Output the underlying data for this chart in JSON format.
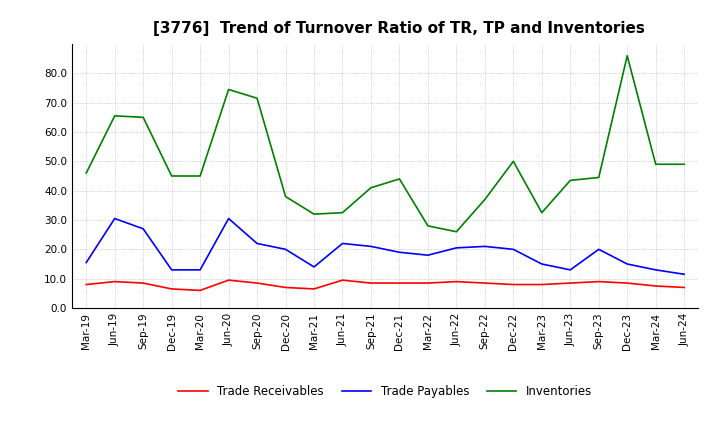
{
  "title": "[3776]  Trend of Turnover Ratio of TR, TP and Inventories",
  "x_labels": [
    "Mar-19",
    "Jun-19",
    "Sep-19",
    "Dec-19",
    "Mar-20",
    "Jun-20",
    "Sep-20",
    "Dec-20",
    "Mar-21",
    "Jun-21",
    "Sep-21",
    "Dec-21",
    "Mar-22",
    "Jun-22",
    "Sep-22",
    "Dec-22",
    "Mar-23",
    "Jun-23",
    "Sep-23",
    "Dec-23",
    "Mar-24",
    "Jun-24"
  ],
  "trade_receivables": [
    8.0,
    9.0,
    8.5,
    6.5,
    6.0,
    9.5,
    8.5,
    7.0,
    6.5,
    9.5,
    8.5,
    8.5,
    8.5,
    9.0,
    8.5,
    8.0,
    8.0,
    8.5,
    9.0,
    8.5,
    7.5,
    7.0
  ],
  "trade_payables": [
    15.5,
    30.5,
    27.0,
    13.0,
    13.0,
    30.5,
    22.0,
    20.0,
    14.0,
    22.0,
    21.0,
    19.0,
    18.0,
    20.5,
    21.0,
    20.0,
    15.0,
    13.0,
    20.0,
    15.0,
    13.0,
    11.5
  ],
  "inventories": [
    46.0,
    65.5,
    65.0,
    45.0,
    45.0,
    74.5,
    71.5,
    38.0,
    32.0,
    32.5,
    41.0,
    44.0,
    28.0,
    26.0,
    37.0,
    50.0,
    32.5,
    43.5,
    44.5,
    86.0,
    49.0,
    49.0
  ],
  "color_tr": "#ff0000",
  "color_tp": "#0000ff",
  "color_inv": "#008000",
  "ylim": [
    0.0,
    90.0
  ],
  "yticks": [
    0.0,
    10.0,
    20.0,
    30.0,
    40.0,
    50.0,
    60.0,
    70.0,
    80.0
  ],
  "legend_labels": [
    "Trade Receivables",
    "Trade Payables",
    "Inventories"
  ],
  "title_fontsize": 11,
  "tick_fontsize": 7.5,
  "legend_fontsize": 8.5,
  "background_color": "#ffffff",
  "grid_color": "#999999"
}
